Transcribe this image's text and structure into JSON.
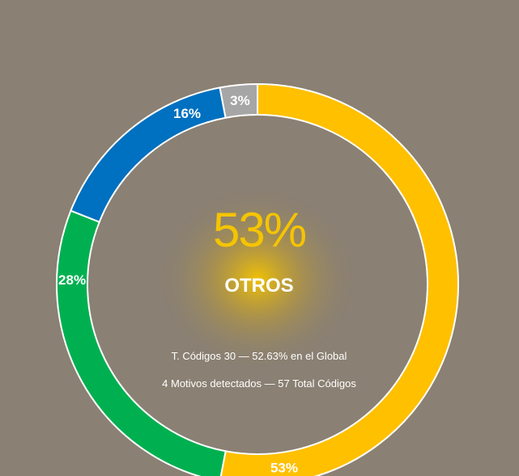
{
  "chart_data": {
    "type": "pie",
    "variant": "donut",
    "slices": [
      {
        "label": "53%",
        "value": 53,
        "color": "#ffc000"
      },
      {
        "label": "28%",
        "value": 28,
        "color": "#00b050"
      },
      {
        "label": "16%",
        "value": 16,
        "color": "#0070c0"
      },
      {
        "label": "3%",
        "value": 3,
        "color": "#a6a6a6"
      }
    ]
  },
  "center": {
    "percent": "53%",
    "label": "OTROS",
    "line1": "T. Códigos 30 — 52.63% en el Global",
    "line2": "4 Motivos detectados — 57 Total Códigos"
  },
  "colors": {
    "background": "#8a8073",
    "glow": "#f5c400"
  }
}
